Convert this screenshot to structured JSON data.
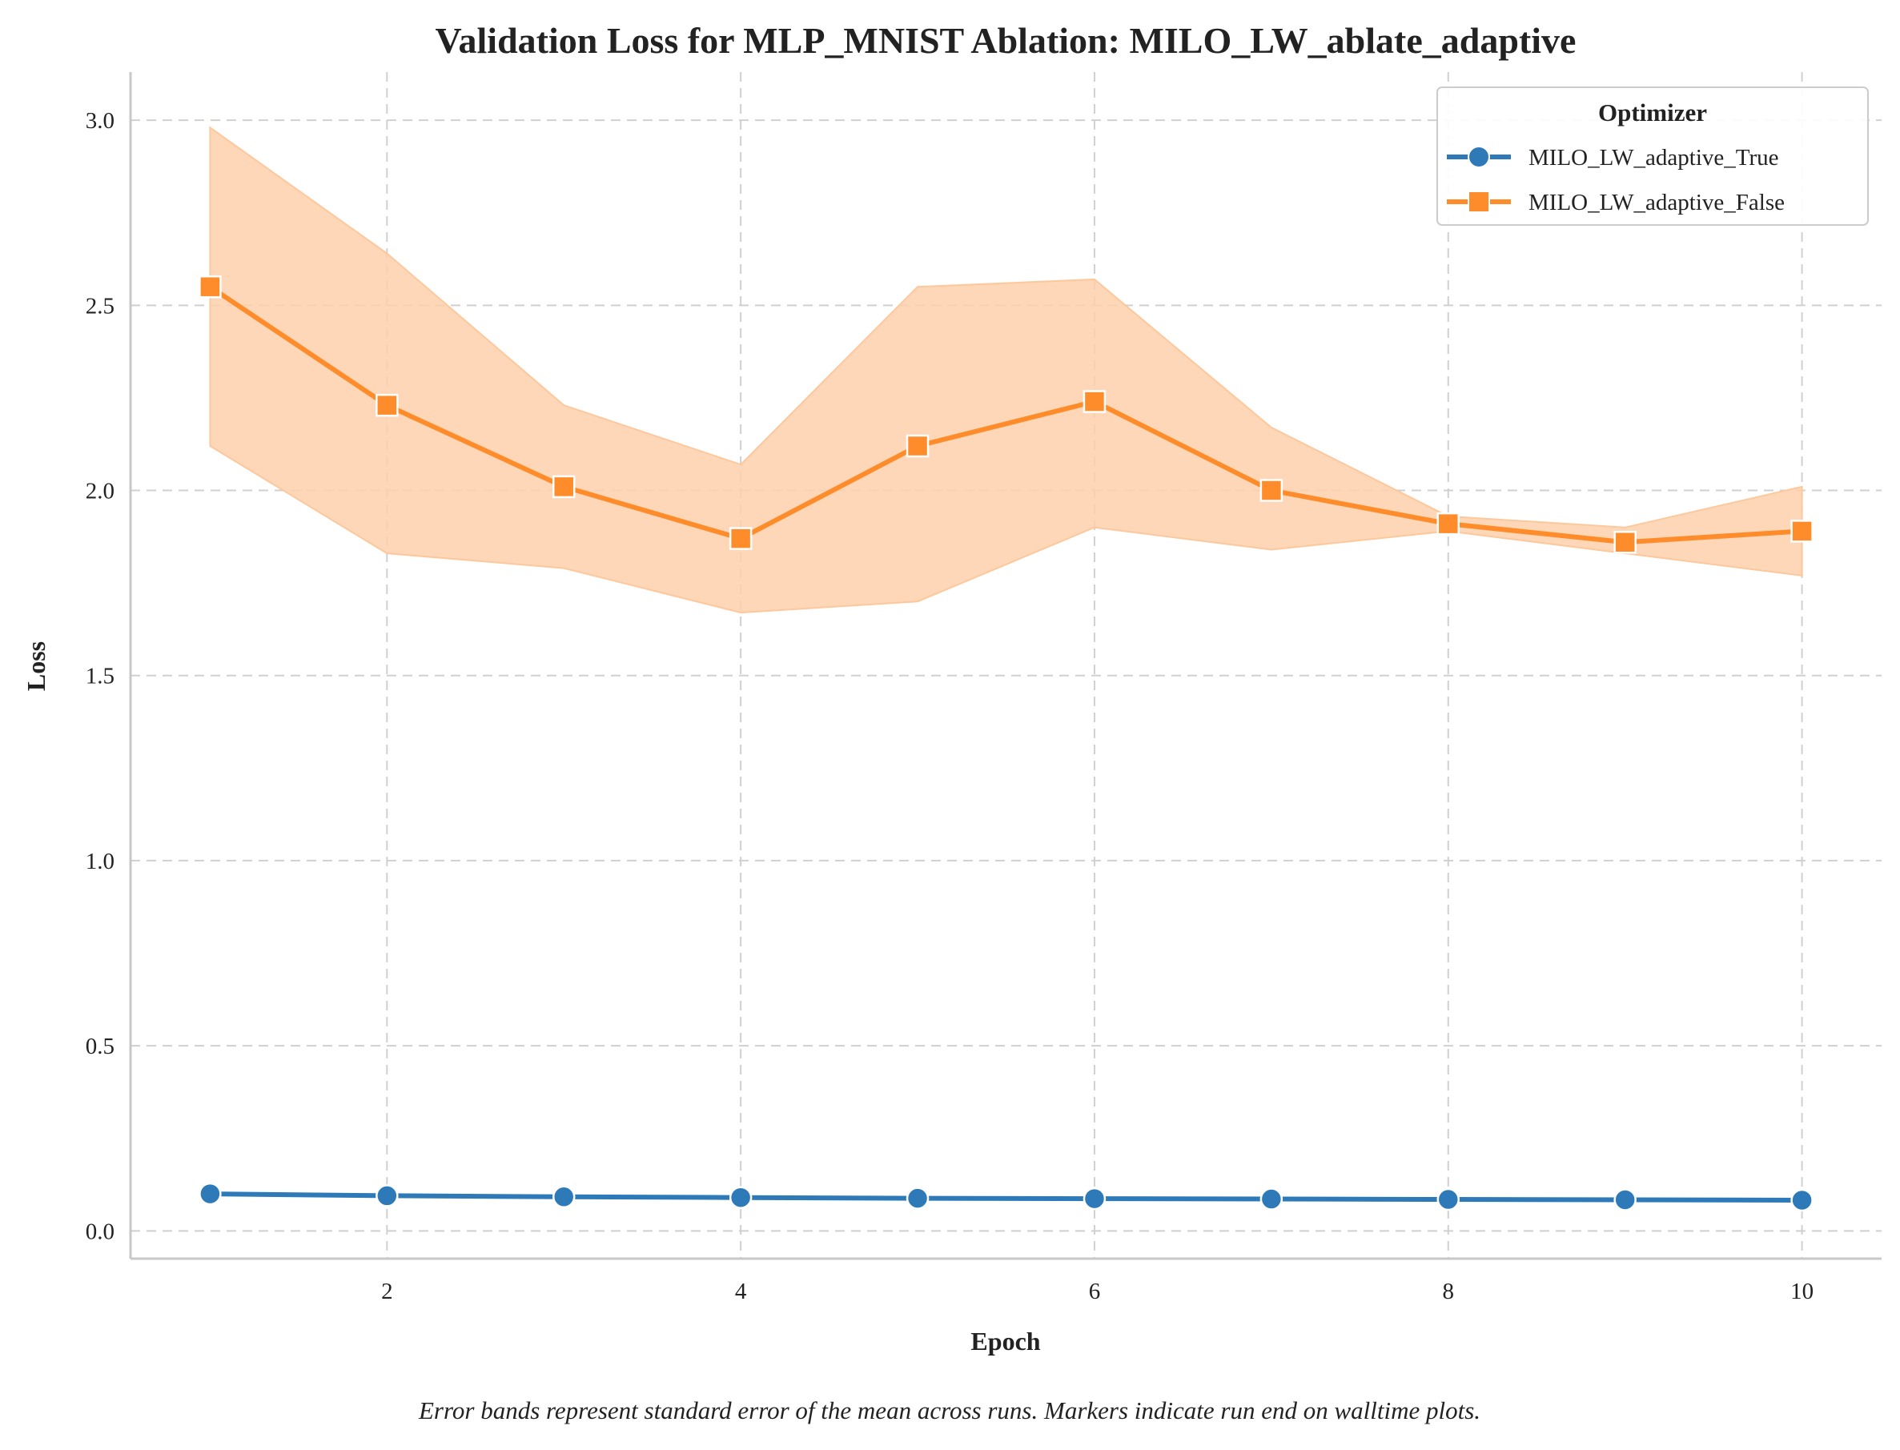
{
  "chart_data": {
    "type": "line",
    "title": "Validation Loss for MLP_MNIST Ablation: MILO_LW_ablate_adaptive",
    "xlabel": "Epoch",
    "ylabel": "Loss",
    "xlim": [
      0.55,
      10.45
    ],
    "ylim": [
      -0.075,
      3.13
    ],
    "x_ticks": [
      2,
      4,
      6,
      8,
      10
    ],
    "x_tick_labels": [
      "2",
      "4",
      "6",
      "8",
      "10"
    ],
    "y_ticks": [
      0.0,
      0.5,
      1.0,
      1.5,
      2.0,
      2.5,
      3.0
    ],
    "y_tick_labels": [
      "0.0",
      "0.5",
      "1.0",
      "1.5",
      "2.0",
      "2.5",
      "3.0"
    ],
    "grid": true,
    "legend": {
      "title": "Optimizer",
      "placement": "top-right"
    },
    "x": [
      1,
      2,
      3,
      4,
      5,
      6,
      7,
      8,
      9,
      10
    ],
    "series": [
      {
        "name": "MILO_LW_adaptive_True",
        "color": "#2e7ab8",
        "marker": "circle",
        "values": [
          0.1,
          0.095,
          0.092,
          0.09,
          0.088,
          0.087,
          0.086,
          0.085,
          0.084,
          0.083
        ],
        "band_lower": null,
        "band_upper": null
      },
      {
        "name": "MILO_LW_adaptive_False",
        "color": "#ff8c2a",
        "marker": "square",
        "values": [
          2.55,
          2.23,
          2.01,
          1.87,
          2.12,
          2.24,
          2.0,
          1.91,
          1.86,
          1.89
        ],
        "band_lower": [
          2.12,
          1.83,
          1.79,
          1.67,
          1.7,
          1.9,
          1.84,
          1.89,
          1.83,
          1.77
        ],
        "band_upper": [
          2.98,
          2.64,
          2.23,
          2.07,
          2.55,
          2.57,
          2.17,
          1.93,
          1.9,
          2.01
        ]
      }
    ],
    "band_color": "#fdd0ab",
    "caption": "Error bands represent standard error of the mean across runs. Markers indicate run end on walltime plots."
  }
}
